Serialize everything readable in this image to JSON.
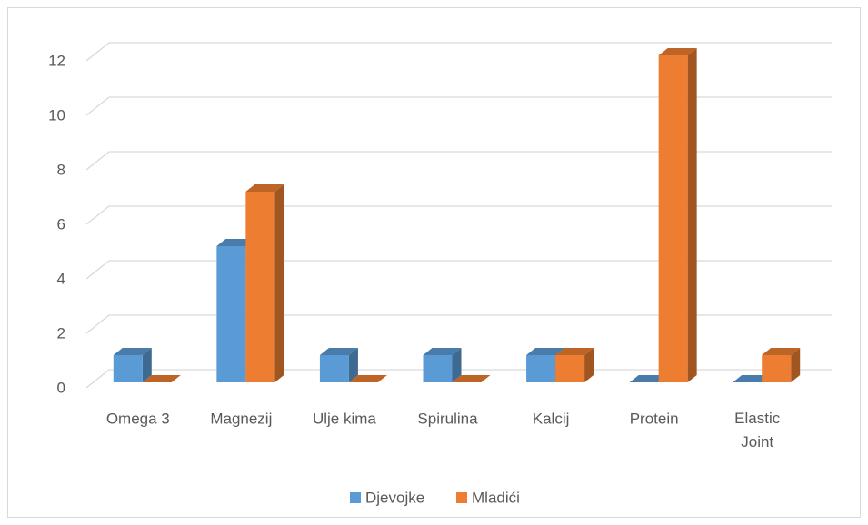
{
  "chart_data": {
    "type": "bar3d",
    "categories": [
      "Omega 3",
      "Magnezij",
      "Ulje kima",
      "Spirulina",
      "Kalcij",
      "Protein",
      "Elastic Joint"
    ],
    "series": [
      {
        "name": "Djevojke",
        "color": "#5b9bd5",
        "values": [
          1,
          5,
          1,
          1,
          1,
          0,
          0
        ]
      },
      {
        "name": "Mladići",
        "color": "#ed7d31",
        "values": [
          0,
          7,
          0,
          0,
          1,
          12,
          1
        ]
      }
    ],
    "ylim": [
      0,
      12
    ],
    "yticks": [
      0,
      2,
      4,
      6,
      8,
      10,
      12
    ],
    "grid": true,
    "legend": "bottom"
  }
}
